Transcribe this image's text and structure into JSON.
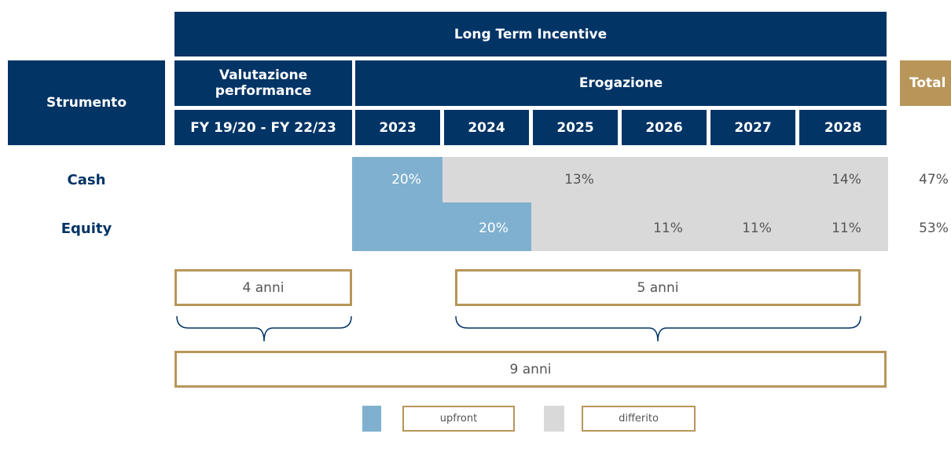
{
  "header": {
    "title": "Long Term Incentive",
    "instrument": "Strumento",
    "evaluation": "Valutazione performance",
    "payout": "Erogazione",
    "total": "Total",
    "period": "FY 19/20 - FY 22/23",
    "years": [
      "2023",
      "2024",
      "2025",
      "2026",
      "2027",
      "2028"
    ]
  },
  "rows": [
    {
      "label": "Cash",
      "upfront": "20%",
      "deferred": [
        "13%",
        "14%"
      ],
      "total": "47%"
    },
    {
      "label": "Equity",
      "upfront": "20%",
      "deferred": [
        "11%",
        "11%",
        "11%"
      ],
      "total": "53%"
    }
  ],
  "durations": {
    "evaluation": "4 anni",
    "deferral": "5 anni",
    "total": "9 anni"
  },
  "legend": {
    "upfront": "upfront",
    "deferred": "differito"
  }
}
